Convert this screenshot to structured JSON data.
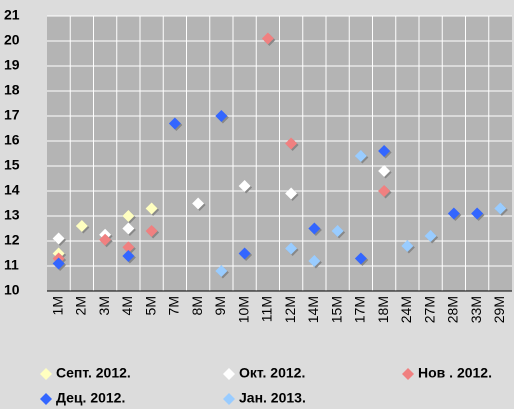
{
  "chart_data": {
    "type": "scatter",
    "categories": [
      "1M",
      "2M",
      "3M",
      "4M",
      "5M",
      "7M",
      "8M",
      "9M",
      "10M",
      "11M",
      "12M",
      "14M",
      "15M",
      "17M",
      "18M",
      "24M",
      "27M",
      "28M",
      "33M",
      "29M"
    ],
    "series": [
      {
        "name": "Септ. 2012.",
        "color": "#ffffc0",
        "values": [
          11.5,
          12.6,
          null,
          13.0,
          13.3,
          null,
          null,
          null,
          null,
          null,
          null,
          null,
          null,
          null,
          null,
          null,
          null,
          null,
          null,
          null
        ]
      },
      {
        "name": "Окт. 2012.",
        "color": "#ffffff",
        "values": [
          12.1,
          null,
          12.25,
          12.5,
          null,
          null,
          13.5,
          null,
          14.2,
          null,
          13.9,
          null,
          null,
          null,
          14.8,
          null,
          null,
          null,
          null,
          null
        ]
      },
      {
        "name": "Нов . 2012.",
        "color": "#f08080",
        "values": [
          11.3,
          null,
          12.05,
          11.75,
          12.4,
          null,
          null,
          null,
          null,
          20.1,
          15.9,
          null,
          null,
          null,
          14.0,
          null,
          null,
          null,
          null,
          null
        ]
      },
      {
        "name": "Дец. 2012.",
        "color": "#3366ff",
        "values": [
          11.1,
          null,
          null,
          11.4,
          null,
          16.7,
          null,
          17.0,
          11.5,
          null,
          null,
          12.5,
          null,
          11.3,
          15.6,
          null,
          null,
          13.1,
          13.1,
          null
        ]
      },
      {
        "name": "Јан. 2013.",
        "color": "#99ccff",
        "values": [
          null,
          null,
          null,
          null,
          null,
          null,
          null,
          10.8,
          null,
          null,
          11.7,
          11.2,
          12.4,
          15.4,
          null,
          11.8,
          12.2,
          null,
          null,
          13.3
        ]
      }
    ],
    "ylim": [
      10,
      21
    ],
    "yticks": [
      10,
      11,
      12,
      13,
      14,
      15,
      16,
      17,
      18,
      19,
      20,
      21
    ],
    "grid": true,
    "legend": "bottom"
  }
}
